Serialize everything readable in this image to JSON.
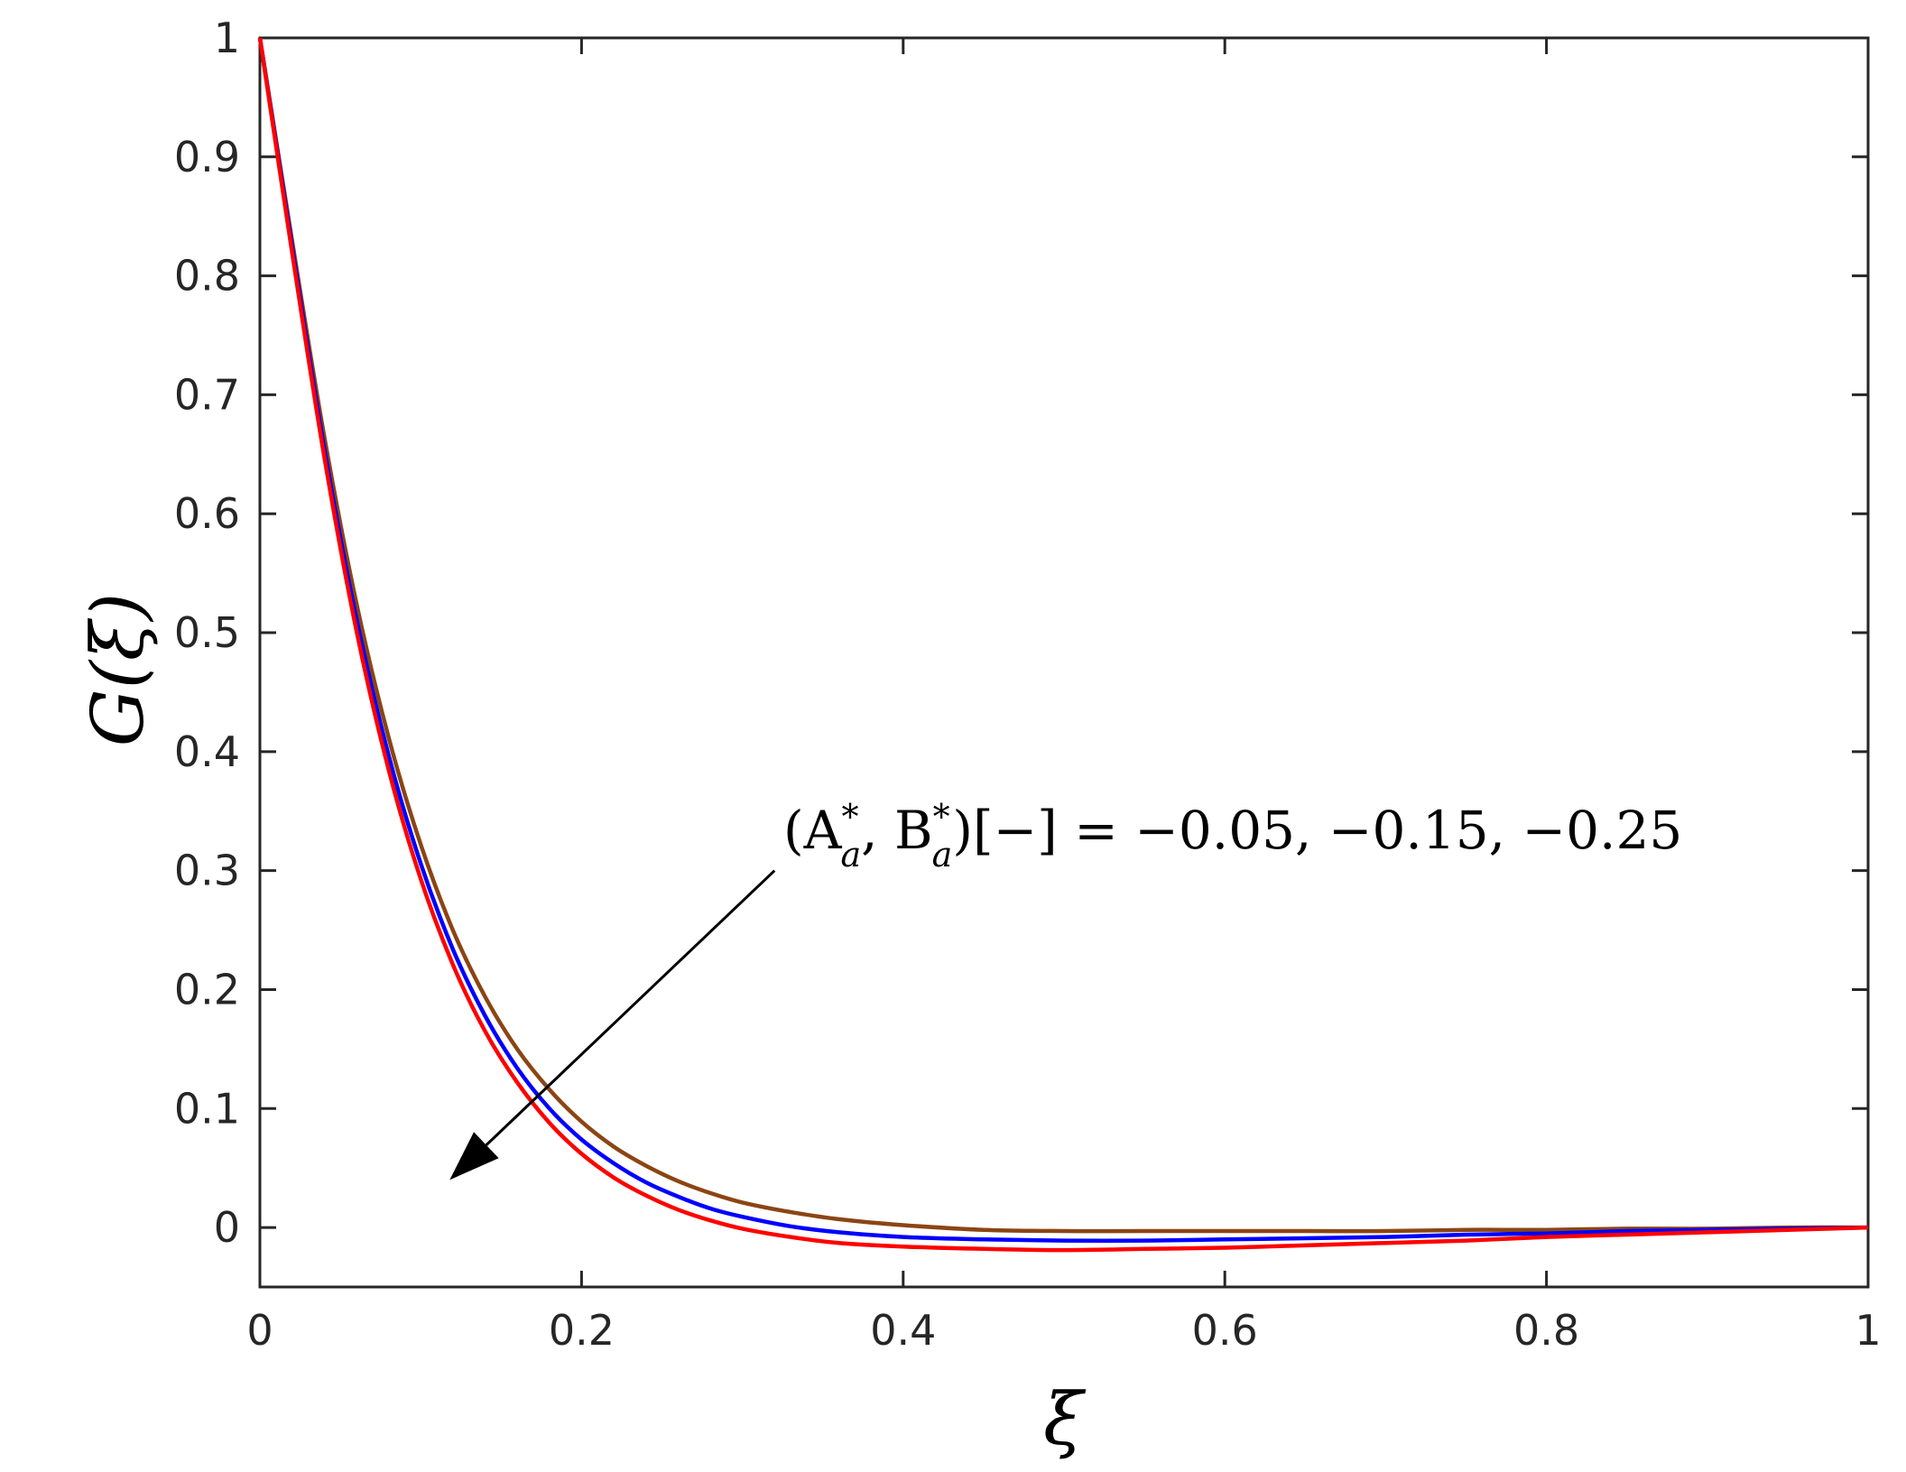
{
  "chart_data": {
    "type": "line",
    "title": "",
    "xlabel": "ξ",
    "ylabel": "G(ξ)",
    "xlim": [
      0,
      1
    ],
    "ylim": [
      -0.05,
      1
    ],
    "xticks": [
      0,
      0.2,
      0.4,
      0.6,
      0.8,
      1
    ],
    "xtick_labels": [
      "0",
      "0.2",
      "0.4",
      "0.6",
      "0.8",
      "1"
    ],
    "yticks": [
      0,
      0.1,
      0.2,
      0.3,
      0.4,
      0.5,
      0.6,
      0.7,
      0.8,
      0.9,
      1
    ],
    "ytick_labels": [
      "0",
      "0.1",
      "0.2",
      "0.3",
      "0.4",
      "0.5",
      "0.6",
      "0.7",
      "0.8",
      "0.9",
      "1"
    ],
    "grid": false,
    "legend": "none",
    "annotation": {
      "text": "(A*a, B*a)[−] = −0.05, −0.15, −0.25",
      "lhs": "(A",
      "sub_a": "a",
      "sup_star": "*",
      "mid": ", B",
      "rhs": ")[−] = −0.05, −0.15, −0.25",
      "arrow_from": [
        0.32,
        0.3
      ],
      "arrow_to": [
        0.118,
        0.04
      ]
    },
    "series": [
      {
        "color": "#8B4513",
        "x": [
          0,
          0.02,
          0.04,
          0.06,
          0.08,
          0.1,
          0.12,
          0.14,
          0.16,
          0.18,
          0.2,
          0.22,
          0.24,
          0.26,
          0.28,
          0.3,
          0.33,
          0.36,
          0.4,
          0.45,
          0.5,
          0.55,
          0.6,
          0.65,
          0.7,
          0.75,
          0.8,
          0.85,
          0.9,
          0.95,
          1
        ],
        "y": [
          1,
          0.83,
          0.665,
          0.525,
          0.412,
          0.322,
          0.25,
          0.194,
          0.15,
          0.116,
          0.089,
          0.068,
          0.052,
          0.039,
          0.029,
          0.021,
          0.013,
          0.007,
          0.002,
          -0.002,
          -0.003,
          -0.003,
          -0.003,
          -0.003,
          -0.003,
          -0.002,
          -0.002,
          -0.001,
          -0.001,
          0,
          0
        ]
      },
      {
        "color": "#0000FF",
        "x": [
          0,
          0.02,
          0.04,
          0.06,
          0.08,
          0.1,
          0.12,
          0.14,
          0.16,
          0.18,
          0.2,
          0.22,
          0.24,
          0.26,
          0.28,
          0.3,
          0.33,
          0.36,
          0.4,
          0.45,
          0.5,
          0.55,
          0.6,
          0.65,
          0.7,
          0.75,
          0.8,
          0.85,
          0.9,
          0.95,
          1
        ],
        "y": [
          1,
          0.825,
          0.655,
          0.512,
          0.397,
          0.306,
          0.234,
          0.178,
          0.134,
          0.1,
          0.074,
          0.054,
          0.038,
          0.026,
          0.016,
          0.009,
          0.001,
          -0.004,
          -0.008,
          -0.01,
          -0.011,
          -0.011,
          -0.01,
          -0.009,
          -0.008,
          -0.006,
          -0.005,
          -0.003,
          -0.002,
          -0.001,
          0
        ]
      },
      {
        "color": "#FF0000",
        "x": [
          0,
          0.02,
          0.04,
          0.06,
          0.08,
          0.1,
          0.12,
          0.14,
          0.16,
          0.18,
          0.2,
          0.22,
          0.24,
          0.26,
          0.28,
          0.3,
          0.33,
          0.36,
          0.4,
          0.45,
          0.5,
          0.55,
          0.6,
          0.65,
          0.7,
          0.75,
          0.8,
          0.85,
          0.9,
          0.95,
          1
        ],
        "y": [
          1,
          0.82,
          0.648,
          0.502,
          0.385,
          0.293,
          0.221,
          0.165,
          0.122,
          0.088,
          0.062,
          0.042,
          0.027,
          0.015,
          0.006,
          -0.001,
          -0.008,
          -0.013,
          -0.016,
          -0.018,
          -0.019,
          -0.018,
          -0.017,
          -0.015,
          -0.013,
          -0.011,
          -0.008,
          -0.006,
          -0.004,
          -0.002,
          0
        ]
      }
    ]
  }
}
